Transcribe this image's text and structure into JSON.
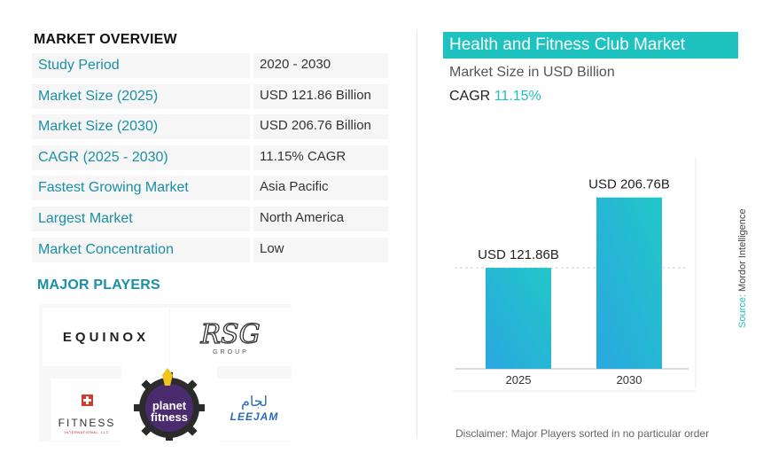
{
  "overview": {
    "title": "MARKET OVERVIEW",
    "rows": [
      {
        "label": "Study Period",
        "value": "2020 - 2030"
      },
      {
        "label": "Market Size (2025)",
        "value": "USD 121.86 Billion"
      },
      {
        "label": "Market Size (2030)",
        "value": "USD 206.76 Billion"
      },
      {
        "label": "CAGR (2025 - 2030)",
        "value": "11.15% CAGR"
      },
      {
        "label": "Fastest Growing Market",
        "value": "Asia Pacific"
      },
      {
        "label": "Largest Market",
        "value": "North America"
      },
      {
        "label": "Market Concentration",
        "value": "Low"
      }
    ]
  },
  "players": {
    "title": "MAJOR PLAYERS",
    "logos": {
      "equinox": "EQUINOX",
      "rsg_mark": "RSG",
      "rsg_group": "GROUP",
      "fitness": "FITNESS",
      "fitness_sub": "INTERNATIONAL, LLC",
      "planet_line1": "planet",
      "planet_line2": "fitness",
      "leejam_arabic": "لجام",
      "leejam_latin": "LEEJAM"
    }
  },
  "chart_panel": {
    "title": "Health and Fitness Club Market",
    "subtitle": "Market Size in USD Billion",
    "cagr_label": "CAGR",
    "cagr_value": "11.15%",
    "source_label": "Source:",
    "source_value": "Mordor Intelligence",
    "disclaimer": "Disclaimer:  Major Players sorted in no particular order"
  },
  "colors": {
    "accent": "#1ec2be",
    "label_text": "#1a8fa6",
    "bar_top": "#22c7c9",
    "bar_bottom": "#2aa7e0"
  },
  "chart_data": {
    "type": "bar",
    "categories": [
      "2025",
      "2030"
    ],
    "values": [
      121.86,
      206.76
    ],
    "data_labels": [
      "USD 121.86B",
      "USD 206.76B"
    ],
    "title": "",
    "xlabel": "",
    "ylabel": "",
    "ylim": [
      0,
      230
    ],
    "grid": false,
    "legend": "none"
  }
}
